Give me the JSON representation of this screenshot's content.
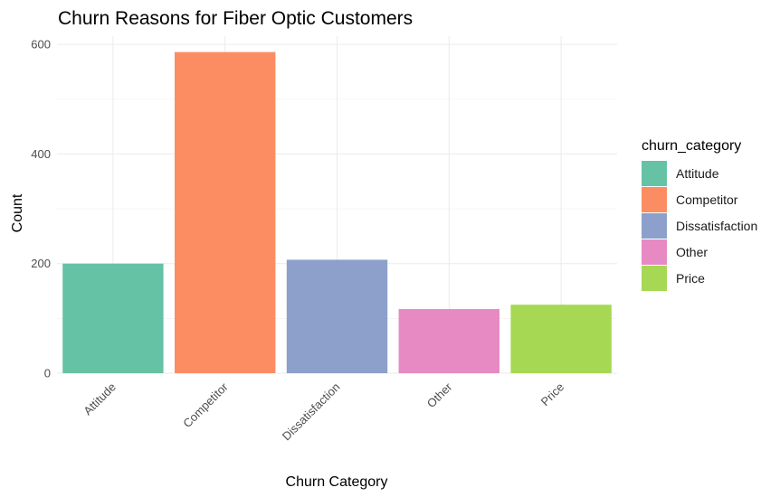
{
  "chart_data": {
    "type": "bar",
    "title": "Churn Reasons for Fiber Optic Customers",
    "xlabel": "Churn Category",
    "ylabel": "Count",
    "categories": [
      "Attitude",
      "Competitor",
      "Dissatisfaction",
      "Other",
      "Price"
    ],
    "values": [
      200,
      586,
      207,
      117,
      125
    ],
    "colors": [
      "#66c2a5",
      "#fc8d62",
      "#8da0cb",
      "#e78ac3",
      "#a6d854"
    ],
    "ylim": [
      0,
      615
    ],
    "yticks": [
      0,
      200,
      400,
      600
    ],
    "ytick_labels": [
      "0",
      "200",
      "400",
      "600"
    ],
    "grid": true,
    "legend": {
      "title": "churn_category",
      "position": "right",
      "entries": [
        "Attitude",
        "Competitor",
        "Dissatisfaction",
        "Other",
        "Price"
      ]
    }
  }
}
